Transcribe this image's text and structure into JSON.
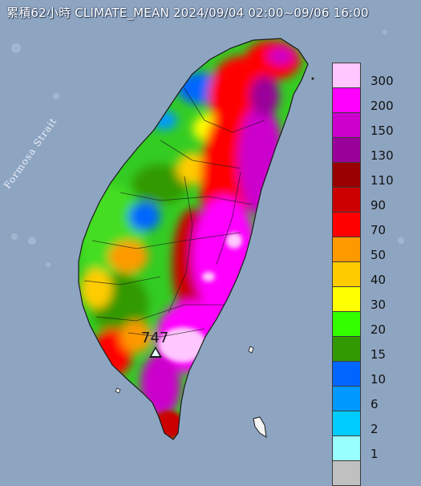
{
  "map": {
    "title": "累積62小時 CLIMATE_MEAN 2024/09/04 02:00~09/06 16:00",
    "sea_label": "Formosa Strait",
    "station": {
      "value": "747"
    }
  },
  "legend": {
    "items": [
      {
        "label": "300",
        "color": "#ffc6ff"
      },
      {
        "label": "200",
        "color": "#ff00ff"
      },
      {
        "label": "150",
        "color": "#cc00cc"
      },
      {
        "label": "130",
        "color": "#9a009a"
      },
      {
        "label": "110",
        "color": "#990000"
      },
      {
        "label": "90",
        "color": "#cc0000"
      },
      {
        "label": "70",
        "color": "#ff0000"
      },
      {
        "label": "50",
        "color": "#ff9900"
      },
      {
        "label": "40",
        "color": "#ffcc00"
      },
      {
        "label": "30",
        "color": "#ffff00"
      },
      {
        "label": "20",
        "color": "#33ff00"
      },
      {
        "label": "15",
        "color": "#339900"
      },
      {
        "label": "10",
        "color": "#0066ff"
      },
      {
        "label": "6",
        "color": "#0099ff"
      },
      {
        "label": "2",
        "color": "#00ccff"
      },
      {
        "label": "1",
        "color": "#99ffff"
      },
      {
        "label": "",
        "color": "#c0c0c0"
      }
    ]
  }
}
